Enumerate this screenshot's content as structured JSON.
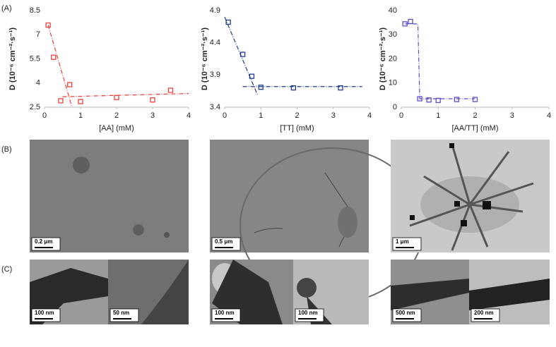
{
  "panel_labels": [
    "(A)",
    "(B)",
    "(C)"
  ],
  "chart_data": [
    {
      "type": "scatter",
      "x_label": "[AA] (mM)",
      "y_label": "D (10⁻⁶ cm⁻²·s⁻¹)",
      "x": [
        0.1,
        0.25,
        0.45,
        0.7,
        1.0,
        2.0,
        3.0,
        3.5
      ],
      "values": [
        7.6,
        5.6,
        2.9,
        3.9,
        2.85,
        3.1,
        2.95,
        3.55
      ],
      "color": "#e8413c",
      "xlim": [
        0,
        4
      ],
      "xticks": [
        0,
        1,
        2,
        3,
        4
      ],
      "ylim": [
        2.5,
        8.5
      ],
      "yticks": [
        2.5,
        4,
        5.5,
        7,
        8.5
      ],
      "line_style": "dash-dot",
      "trend_lines": [
        {
          "x": [
            0.1,
            0.75
          ],
          "y": [
            7.6,
            2.6
          ]
        },
        {
          "x": [
            0.5,
            4.0
          ],
          "y": [
            3.15,
            3.35
          ]
        }
      ]
    },
    {
      "type": "scatter",
      "x_label": "[TT] (mM)",
      "y_label": "D (10⁻⁶ cm⁻²·s⁻¹)",
      "x": [
        0.1,
        0.5,
        0.75,
        1.0,
        1.9,
        3.2
      ],
      "values": [
        4.72,
        4.22,
        3.88,
        3.71,
        3.7,
        3.7
      ],
      "color": "#1f3c88",
      "xlim": [
        0,
        4
      ],
      "xticks": [
        0,
        1,
        2,
        3,
        4
      ],
      "ylim": [
        3.4,
        4.9
      ],
      "yticks": [
        3.4,
        3.9,
        4.4,
        4.9
      ],
      "line_style": "dash-dot",
      "trend_lines": [
        {
          "x": [
            0.0,
            0.9
          ],
          "y": [
            4.8,
            3.6
          ]
        },
        {
          "x": [
            0.5,
            3.8
          ],
          "y": [
            3.72,
            3.72
          ]
        }
      ]
    },
    {
      "type": "scatter",
      "x_label": "[AA/TT] (mM)",
      "y_label": "D (10⁻⁶ cm⁻²·s⁻¹)",
      "x": [
        0.1,
        0.25,
        0.5,
        0.75,
        1.0,
        1.5,
        2.0
      ],
      "values": [
        34.5,
        35.5,
        3.5,
        3.0,
        2.8,
        3.2,
        3.2
      ],
      "color": "#5b4fc8",
      "xlim": [
        0,
        4
      ],
      "xticks": [
        0,
        1,
        2,
        3,
        4
      ],
      "ylim": [
        0,
        40
      ],
      "yticks": [
        0,
        10,
        20,
        30,
        40
      ],
      "line_style": "dash-dot",
      "trend_lines": [
        {
          "x": [
            0.1,
            0.45,
            0.5,
            2.0
          ],
          "y": [
            34.5,
            34.5,
            3.5,
            3.5
          ]
        }
      ]
    }
  ],
  "scale_bars": [
    "0.2 μm",
    "0.5 μm",
    "1 μm",
    "100 nm",
    "50 nm",
    "100 nm",
    "100 nm",
    "500 nm",
    "200 nm"
  ]
}
